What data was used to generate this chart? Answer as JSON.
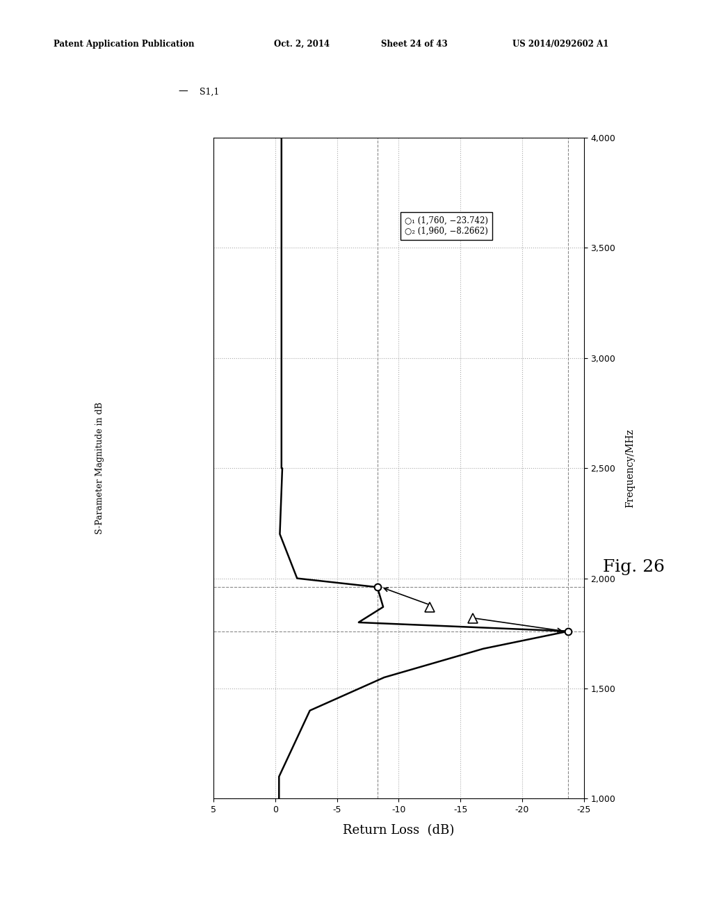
{
  "title_header": "Patent Application Publication",
  "date_header": "Oct. 2, 2014",
  "sheet_header": "Sheet 24 of 43",
  "patent_header": "US 2014/0292602 A1",
  "fig_label": "Fig. 26",
  "ylabel_left": "S-Parameter Magnitude in dB",
  "xlabel_right": "Frequency/MHz",
  "xlabel_bottom": "Return Loss  (dB)",
  "legend_s11": "S1,1",
  "marker1_text": "○₁ (1,760, −23.742)",
  "marker2_text": "○₂ (1,960, −8.2662)",
  "freq_min": 1000,
  "freq_max": 4000,
  "rl_min": -25,
  "rl_max": 5,
  "freq_ticks": [
    1000,
    1500,
    2000,
    2500,
    3000,
    3500,
    4000
  ],
  "rl_ticks": [
    5,
    0,
    -5,
    -10,
    -15,
    -20,
    -25
  ],
  "marker1_freq": 1760,
  "marker1_rl": -23.742,
  "marker2_freq": 1960,
  "marker2_rl": -8.2662,
  "bg_color": "#ffffff",
  "line_color": "#000000",
  "grid_dotted_color": "#aaaaaa",
  "grid_dashed_color": "#888888"
}
